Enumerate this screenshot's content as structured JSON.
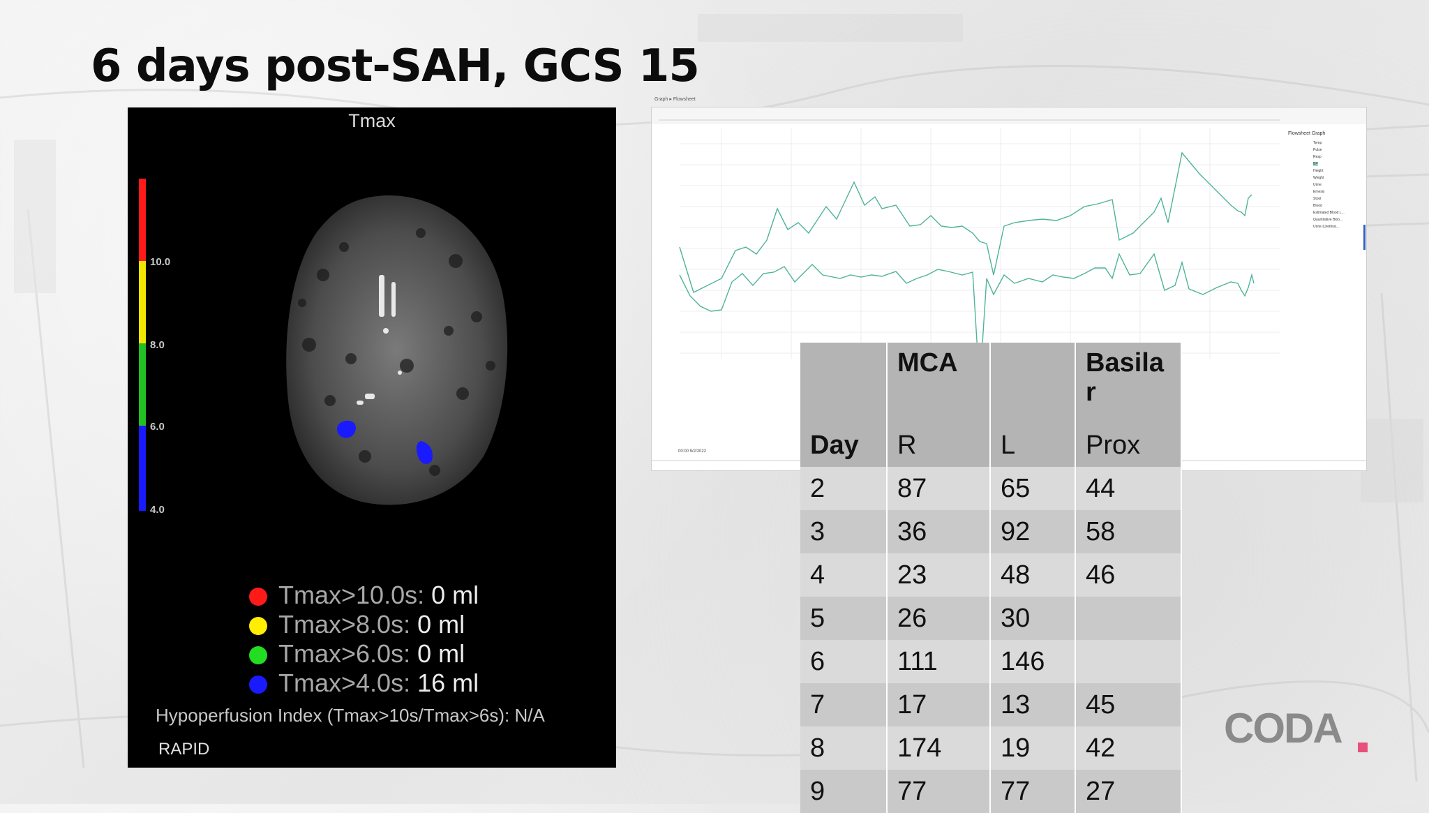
{
  "slide": {
    "title": "6 days post-SAH, GCS 15"
  },
  "tmax_panel": {
    "title": "Tmax",
    "scale_ticks": [
      "10.0",
      "8.0",
      "6.0",
      "4.0"
    ],
    "scale_colors": [
      "#ff1a1a",
      "#f2e600",
      "#22c022",
      "#1a1aff"
    ],
    "legend": [
      {
        "label": "Tmax>10.0s:",
        "value": "0 ml",
        "color": "#ff1a1a"
      },
      {
        "label": "Tmax>8.0s:",
        "value": "0 ml",
        "color": "#ffee00"
      },
      {
        "label": "Tmax>6.0s:",
        "value": "0 ml",
        "color": "#22dd22"
      },
      {
        "label": "Tmax>4.0s:",
        "value": "16 ml",
        "color": "#1a1aff"
      }
    ],
    "hypoperfusion_index": "Hypoperfusion Index (Tmax>10s/Tmax>6s): N/A",
    "vendor": "RAPID"
  },
  "flowsheet": {
    "tabs": "Graph  ▸  Flowsheet",
    "panel_title": "Flowsheet Graph",
    "items": [
      "Temp",
      "Pulse",
      "Resp",
      "BP",
      "Height",
      "Weight",
      "Urine",
      "Emesis",
      "Stool",
      "Blood",
      "Estimated Blood L...",
      "Quantitative Bloo...",
      "Urine (Urethral..."
    ],
    "footer": "00:00 9/2/2022",
    "line_color": "#4fb39a"
  },
  "tcd_table": {
    "header": [
      "",
      "MCA",
      "",
      "Basilar"
    ],
    "subheader": [
      "Day",
      "R",
      "L",
      "Prox"
    ],
    "rows": [
      [
        "2",
        "87",
        "65",
        "44"
      ],
      [
        "3",
        "36",
        "92",
        "58"
      ],
      [
        "4",
        "23",
        "48",
        "46"
      ],
      [
        "5",
        "26",
        "30",
        ""
      ],
      [
        "6",
        "111",
        "146",
        ""
      ],
      [
        "7",
        "17",
        "13",
        "45"
      ],
      [
        "8",
        "174",
        "19",
        "42"
      ],
      [
        "9",
        "77",
        "77",
        "27"
      ]
    ]
  },
  "logo": {
    "text": "CODA",
    "accent": "#e6507a"
  }
}
